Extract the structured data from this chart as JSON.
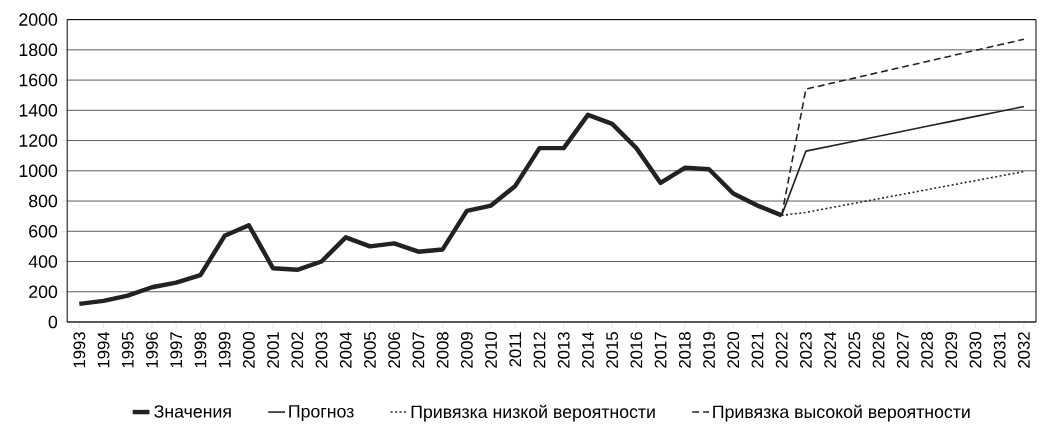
{
  "chart_data": {
    "type": "line",
    "categories": [
      "1993",
      "1994",
      "1995",
      "1996",
      "1997",
      "1998",
      "1999",
      "2000",
      "2001",
      "2002",
      "2003",
      "2004",
      "2005",
      "2006",
      "2007",
      "2008",
      "2009",
      "2010",
      "2011",
      "2012",
      "2013",
      "2014",
      "2015",
      "2016",
      "2017",
      "2018",
      "2019",
      "2020",
      "2021",
      "2022",
      "2023",
      "2024",
      "2025",
      "2026",
      "2027",
      "2028",
      "2029",
      "2030",
      "2031",
      "2032"
    ],
    "series": [
      {
        "name": "Значения",
        "color": "#222222",
        "line_style": "solid",
        "values": [
          120,
          140,
          175,
          230,
          260,
          310,
          570,
          640,
          355,
          345,
          400,
          560,
          500,
          520,
          465,
          480,
          735,
          770,
          900,
          1150,
          1150,
          1370,
          1310,
          1150,
          920,
          1020,
          1010,
          850,
          770,
          705,
          null,
          null,
          null,
          null,
          null,
          null,
          null,
          null,
          null,
          null
        ]
      },
      {
        "name": "Прогноз",
        "color": "#222222",
        "line_style": "solid",
        "values": [
          null,
          null,
          null,
          null,
          null,
          null,
          null,
          null,
          null,
          null,
          null,
          null,
          null,
          null,
          null,
          null,
          null,
          null,
          null,
          null,
          null,
          null,
          null,
          null,
          null,
          null,
          null,
          null,
          null,
          705,
          1130,
          1163,
          1196,
          1228,
          1261,
          1294,
          1327,
          1360,
          1392,
          1425
        ]
      },
      {
        "name": "Привязка низкой вероятности",
        "color": "#222222",
        "line_style": "dotted",
        "values": [
          null,
          null,
          null,
          null,
          null,
          null,
          null,
          null,
          null,
          null,
          null,
          null,
          null,
          null,
          null,
          null,
          null,
          null,
          null,
          null,
          null,
          null,
          null,
          null,
          null,
          null,
          null,
          null,
          null,
          705,
          725,
          755,
          785,
          815,
          845,
          875,
          905,
          935,
          965,
          995
        ]
      },
      {
        "name": "Привязка высокой вероятности",
        "color": "#222222",
        "line_style": "dashed",
        "values": [
          null,
          null,
          null,
          null,
          null,
          null,
          null,
          null,
          null,
          null,
          null,
          null,
          null,
          null,
          null,
          null,
          null,
          null,
          null,
          null,
          null,
          null,
          null,
          null,
          null,
          null,
          null,
          null,
          null,
          705,
          1540,
          1577,
          1613,
          1650,
          1687,
          1723,
          1760,
          1797,
          1833,
          1870
        ]
      }
    ],
    "ylim": [
      0,
      2000
    ],
    "yticks": [
      0,
      200,
      400,
      600,
      800,
      1000,
      1200,
      1400,
      1600,
      1800,
      2000
    ],
    "grid": "y",
    "legend": "bottom",
    "marker": "none"
  }
}
